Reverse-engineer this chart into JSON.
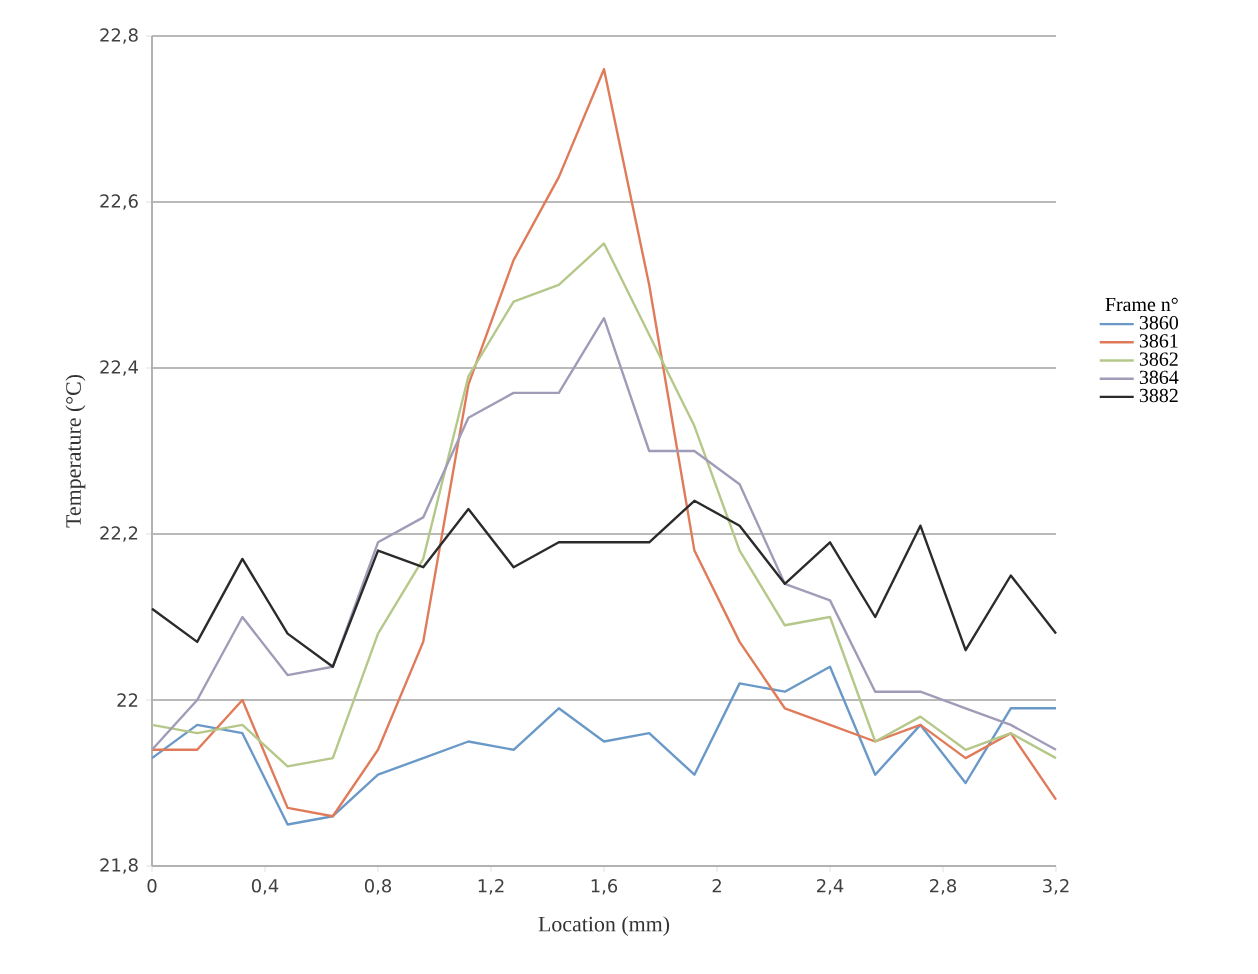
{
  "chart_data": {
    "type": "line",
    "xlabel": "Location (mm)",
    "ylabel": "Temperature (°C)",
    "legend_title": "Frame n°",
    "x": [
      0,
      0.16,
      0.32,
      0.48,
      0.64,
      0.8,
      0.96,
      1.12,
      1.28,
      1.44,
      1.6,
      1.76,
      1.92,
      2.08,
      2.24,
      2.4,
      2.56,
      2.72,
      2.88,
      3.04,
      3.2
    ],
    "series": [
      {
        "name": "3860",
        "color": "#6a99c8",
        "values": [
          21.93,
          21.97,
          21.96,
          21.85,
          21.86,
          21.91,
          21.93,
          21.95,
          21.94,
          21.99,
          21.95,
          21.96,
          21.91,
          22.02,
          22.01,
          22.04,
          21.91,
          21.97,
          21.9,
          21.99,
          21.99
        ]
      },
      {
        "name": "3861",
        "color": "#e07b5a",
        "values": [
          21.94,
          21.94,
          22.0,
          21.87,
          21.86,
          21.94,
          22.07,
          22.38,
          22.53,
          22.63,
          22.76,
          22.5,
          22.18,
          22.07,
          21.99,
          21.97,
          21.95,
          21.97,
          21.93,
          21.96,
          21.88
        ]
      },
      {
        "name": "3862",
        "color": "#b5c88a",
        "values": [
          21.97,
          21.96,
          21.97,
          21.92,
          21.93,
          22.08,
          22.17,
          22.39,
          22.48,
          22.5,
          22.55,
          22.44,
          22.33,
          22.18,
          22.09,
          22.1,
          21.95,
          21.98,
          21.94,
          21.96,
          21.93
        ]
      },
      {
        "name": "3864",
        "color": "#a09cb8",
        "values": [
          21.94,
          22.0,
          22.1,
          22.03,
          22.04,
          22.19,
          22.22,
          22.34,
          22.37,
          22.37,
          22.46,
          22.3,
          22.3,
          22.26,
          22.14,
          22.12,
          22.01,
          22.01,
          21.99,
          21.97,
          21.94
        ]
      },
      {
        "name": "3882",
        "color": "#2b2b2b",
        "values": [
          22.11,
          22.07,
          22.17,
          22.08,
          22.04,
          22.18,
          22.16,
          22.23,
          22.16,
          22.19,
          22.19,
          22.19,
          22.24,
          22.21,
          22.14,
          22.19,
          22.1,
          22.21,
          22.06,
          22.15,
          22.08
        ]
      }
    ],
    "xlim": [
      0,
      3.2
    ],
    "ylim": [
      21.8,
      22.8
    ],
    "xticks": [
      0,
      {
        "value": 0.4,
        "label": "0,4"
      },
      {
        "value": 0.8,
        "label": "0,8"
      },
      {
        "value": 1.2,
        "label": "1,2"
      },
      {
        "value": 1.6,
        "label": "1,6"
      },
      2,
      {
        "value": 2.4,
        "label": "2,4"
      },
      {
        "value": 2.8,
        "label": "2,8"
      },
      {
        "value": 3.2,
        "label": "3,2"
      }
    ],
    "yticks": [
      {
        "value": 21.8,
        "label": "21,8"
      },
      22,
      {
        "value": 22.2,
        "label": "22,2"
      },
      {
        "value": 22.4,
        "label": "22,4"
      },
      {
        "value": 22.6,
        "label": "22,6"
      },
      {
        "value": 22.8,
        "label": "22,8"
      }
    ],
    "grid": "y",
    "legend": "right",
    "marker": "none",
    "line_style": "solid"
  }
}
